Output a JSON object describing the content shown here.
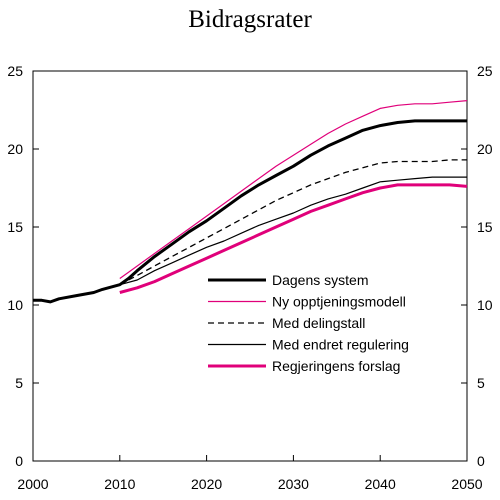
{
  "chart_data": {
    "type": "line",
    "title": "Bidragsrater",
    "xlabel": "",
    "ylabel": "",
    "xlim": [
      2000,
      2050
    ],
    "ylim": [
      0,
      25
    ],
    "x_ticks": [
      2000,
      2010,
      2020,
      2030,
      2040,
      2050
    ],
    "y_ticks": [
      0,
      5,
      10,
      15,
      20,
      25
    ],
    "legend_placement": "bottom-right",
    "grid": false,
    "series": [
      {
        "name": "Dagens system",
        "color": "#000000",
        "style": "solid-thick",
        "x": [
          2000,
          2001,
          2002,
          2003,
          2005,
          2007,
          2008,
          2010,
          2011,
          2012,
          2014,
          2016,
          2018,
          2020,
          2022,
          2024,
          2026,
          2028,
          2030,
          2032,
          2034,
          2036,
          2038,
          2040,
          2042,
          2044,
          2046,
          2048,
          2050
        ],
        "y": [
          10.3,
          10.3,
          10.2,
          10.4,
          10.6,
          10.8,
          11.0,
          11.3,
          11.7,
          12.2,
          13.1,
          13.9,
          14.7,
          15.4,
          16.2,
          17.0,
          17.7,
          18.3,
          18.9,
          19.6,
          20.2,
          20.7,
          21.2,
          21.5,
          21.7,
          21.8,
          21.8,
          21.8,
          21.8
        ]
      },
      {
        "name": "Ny opptjeningsmodell",
        "color": "#e0007a",
        "style": "solid-thin",
        "x": [
          2010,
          2012,
          2014,
          2016,
          2018,
          2020,
          2022,
          2024,
          2026,
          2028,
          2030,
          2032,
          2034,
          2036,
          2038,
          2040,
          2042,
          2044,
          2046,
          2048,
          2050
        ],
        "y": [
          11.7,
          12.5,
          13.3,
          14.1,
          14.9,
          15.7,
          16.5,
          17.3,
          18.1,
          18.9,
          19.6,
          20.3,
          21.0,
          21.6,
          22.1,
          22.6,
          22.8,
          22.9,
          22.9,
          23.0,
          23.1
        ]
      },
      {
        "name": "Med delingstall",
        "color": "#000000",
        "style": "dashed",
        "x": [
          2010,
          2012,
          2014,
          2016,
          2018,
          2020,
          2022,
          2024,
          2026,
          2028,
          2030,
          2032,
          2034,
          2036,
          2038,
          2040,
          2042,
          2044,
          2046,
          2048,
          2050
        ],
        "y": [
          11.3,
          11.9,
          12.5,
          13.1,
          13.7,
          14.3,
          14.9,
          15.5,
          16.1,
          16.7,
          17.2,
          17.7,
          18.1,
          18.5,
          18.8,
          19.1,
          19.2,
          19.2,
          19.2,
          19.3,
          19.3
        ]
      },
      {
        "name": "Med endret regulering",
        "color": "#000000",
        "style": "solid-thin",
        "x": [
          2010,
          2012,
          2014,
          2016,
          2018,
          2020,
          2022,
          2024,
          2026,
          2028,
          2030,
          2032,
          2034,
          2036,
          2038,
          2040,
          2042,
          2044,
          2046,
          2048,
          2050
        ],
        "y": [
          11.3,
          11.6,
          12.2,
          12.7,
          13.2,
          13.7,
          14.1,
          14.6,
          15.1,
          15.5,
          15.9,
          16.4,
          16.8,
          17.1,
          17.5,
          17.9,
          18.0,
          18.1,
          18.2,
          18.2,
          18.2
        ]
      },
      {
        "name": "Regjeringens forslag",
        "color": "#e0007a",
        "style": "solid-thick",
        "x": [
          2010,
          2012,
          2014,
          2016,
          2018,
          2020,
          2022,
          2024,
          2026,
          2028,
          2030,
          2032,
          2034,
          2036,
          2038,
          2040,
          2042,
          2044,
          2046,
          2048,
          2050
        ],
        "y": [
          10.8,
          11.1,
          11.5,
          12.0,
          12.5,
          13.0,
          13.5,
          14.0,
          14.5,
          15.0,
          15.5,
          16.0,
          16.4,
          16.8,
          17.2,
          17.5,
          17.7,
          17.7,
          17.7,
          17.7,
          17.6
        ]
      }
    ]
  }
}
